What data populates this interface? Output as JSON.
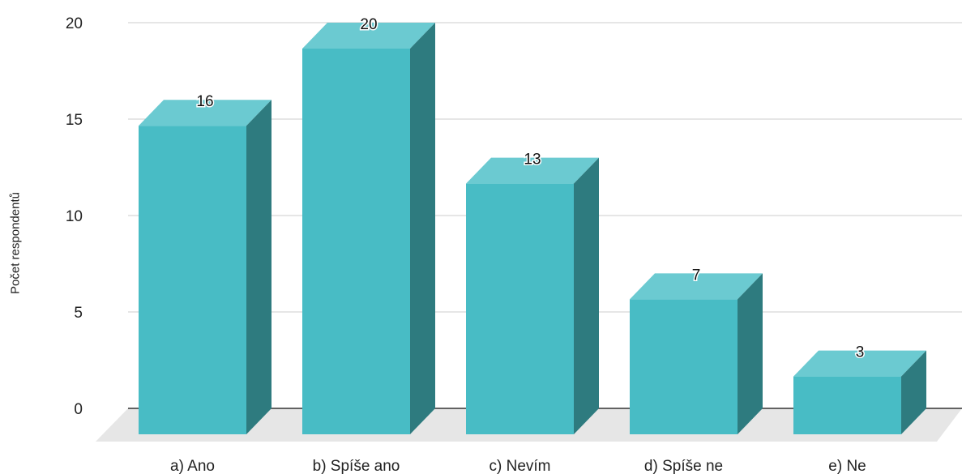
{
  "chart_data": {
    "type": "bar",
    "style": "3d",
    "categories": [
      "a) Ano",
      "b) Spíše ano",
      "c) Nevím",
      "d) Spíše ne",
      "e) Ne"
    ],
    "values": [
      16,
      20,
      13,
      7,
      3
    ],
    "title": "",
    "xlabel": "",
    "ylabel": "Počet respondentů",
    "ylim": [
      0,
      20
    ],
    "yticks": [
      0,
      5,
      10,
      15,
      20
    ],
    "grid": true,
    "legend": "none",
    "colors": {
      "bar_front": "#48BCC5",
      "bar_top": "#6BCAD1",
      "bar_side": "#2E7B7F",
      "floor": "#E6E6E6",
      "grid": "#CCCCCC",
      "axis": "#333333"
    }
  }
}
